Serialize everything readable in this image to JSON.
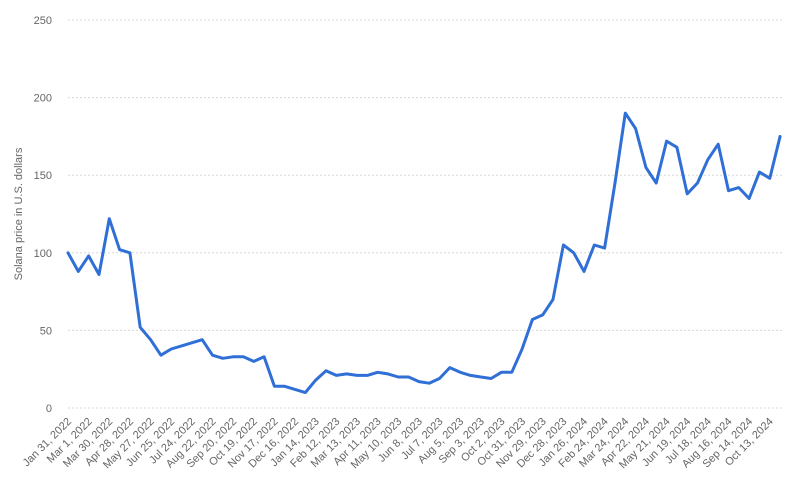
{
  "chart_data": {
    "type": "line",
    "y_axis_label": "Solana price in U.S. dollars",
    "categories": [
      "Jan 31, 2022",
      null,
      "Mar 1, 2022",
      null,
      "Mar 30, 2022",
      null,
      "Apr 28, 2022",
      null,
      "May 27, 2022",
      null,
      "Jun 25, 2022",
      null,
      "Jul 24, 2022",
      null,
      "Aug 22, 2022",
      null,
      "Sep 20, 2022",
      null,
      "Oct 19, 2022",
      null,
      "Nov 17, 2022",
      null,
      "Dec 16, 2022",
      null,
      "Jan 14, 2023",
      null,
      "Feb 12, 2023",
      null,
      "Mar 13, 2023",
      null,
      "Apr 11, 2023",
      null,
      "May 10, 2023",
      null,
      "Jun 8, 2023",
      null,
      "Jul 7, 2023",
      null,
      "Aug 5, 2023",
      null,
      "Sep 3, 2023",
      null,
      "Oct 2, 2023",
      null,
      "Oct 31, 2023",
      null,
      "Nov 29, 2023",
      null,
      "Dec 28, 2023",
      null,
      "Jan 26, 2024",
      null,
      "Feb 24, 2024",
      null,
      "Mar 24, 2024",
      null,
      "Apr 22, 2024",
      null,
      "May 21, 2024",
      null,
      "Jun 19, 2024",
      null,
      "Jul 18, 2024",
      null,
      "Aug 16, 2024",
      null,
      "Sep 14, 2024",
      null,
      "Oct 13, 2024",
      null
    ],
    "series": [
      {
        "name": "Solana price",
        "color": "#2f6fd6",
        "values": [
          100,
          88,
          98,
          86,
          122,
          102,
          100,
          52,
          44,
          34,
          38,
          40,
          42,
          44,
          34,
          32,
          33,
          33,
          30,
          33,
          14,
          14,
          12,
          10,
          18,
          24,
          21,
          22,
          21,
          21,
          23,
          22,
          20,
          20,
          17,
          16,
          19,
          26,
          23,
          21,
          20,
          19,
          23,
          23,
          38,
          57,
          60,
          70,
          105,
          100,
          88,
          105,
          103,
          145,
          190,
          180,
          155,
          145,
          172,
          168,
          138,
          145,
          160,
          170,
          140,
          142,
          135,
          152,
          148,
          175
        ]
      }
    ],
    "ylim": [
      0,
      250
    ],
    "yticks": [
      0,
      50,
      100,
      150,
      200,
      250
    ],
    "grid": true
  }
}
